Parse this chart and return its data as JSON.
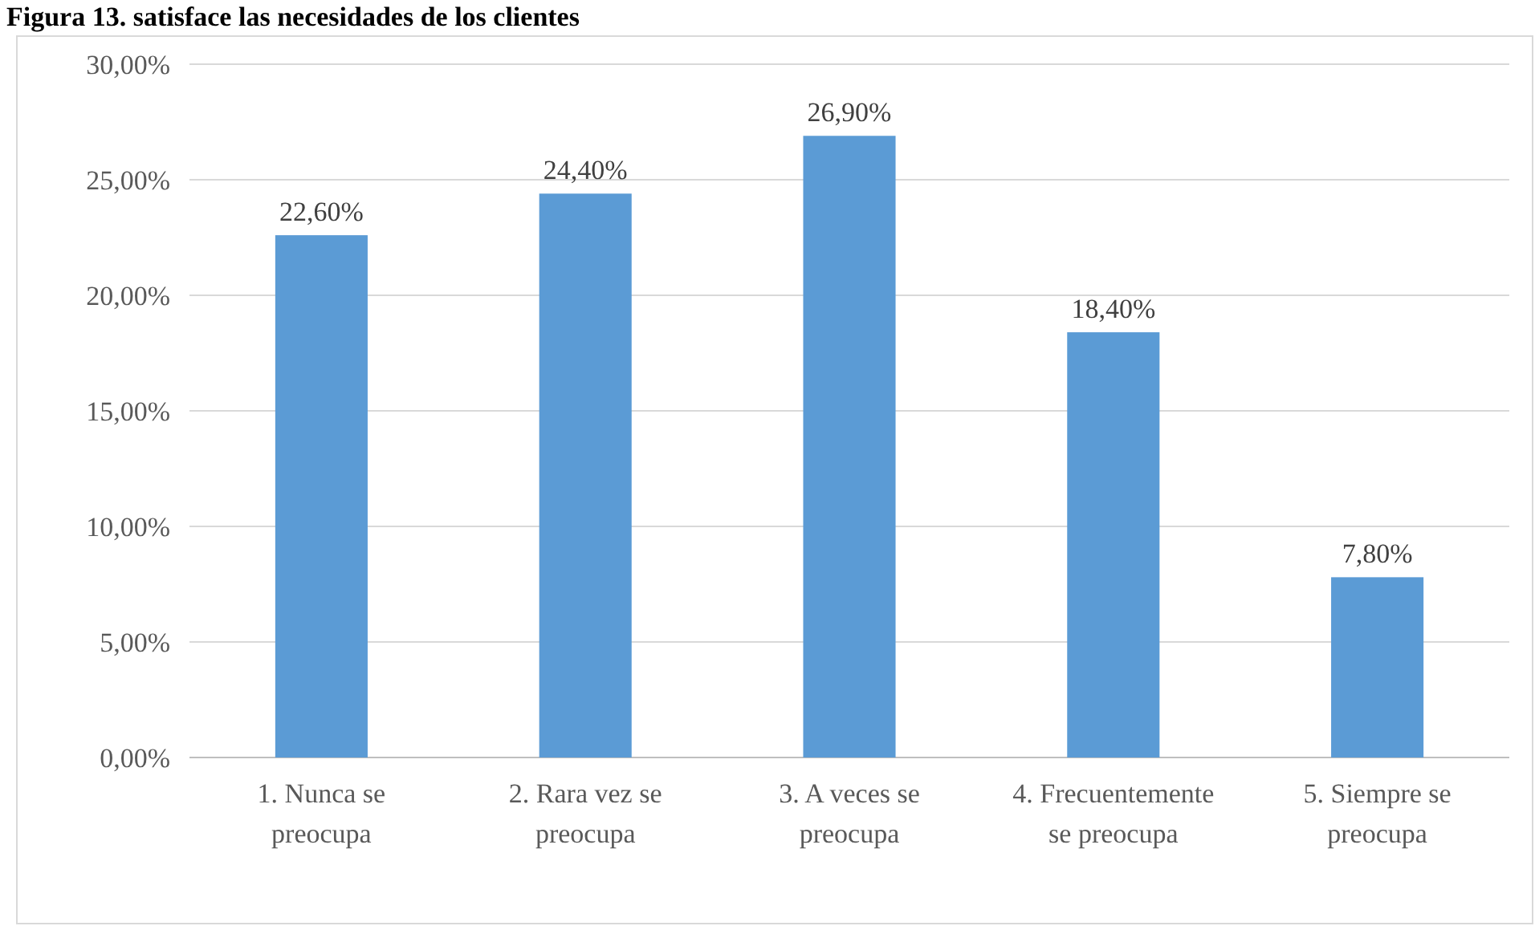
{
  "chart_data": {
    "type": "bar",
    "title": "Figura 13. satisface las necesidades de los clientes",
    "categories": [
      "1. Nunca se preocupa",
      "2. Rara vez se preocupa",
      "3. A veces se preocupa",
      "4. Frecuentemente se preocupa",
      "5. Siempre se preocupa"
    ],
    "values": [
      22.6,
      24.4,
      26.9,
      18.4,
      7.8
    ],
    "value_labels": [
      "22,60%",
      "24,40%",
      "26,90%",
      "18,40%",
      "7,80%"
    ],
    "color": "#5b9bd5",
    "ylim": [
      0,
      30
    ],
    "yticks": [
      {
        "value": 0,
        "label": "0,00%"
      },
      {
        "value": 5,
        "label": "5,00%"
      },
      {
        "value": 10,
        "label": "10,00%"
      },
      {
        "value": 15,
        "label": "15,00%"
      },
      {
        "value": 20,
        "label": "20,00%"
      },
      {
        "value": 25,
        "label": "25,00%"
      },
      {
        "value": 30,
        "label": "30,00%"
      }
    ],
    "grid": "y"
  }
}
